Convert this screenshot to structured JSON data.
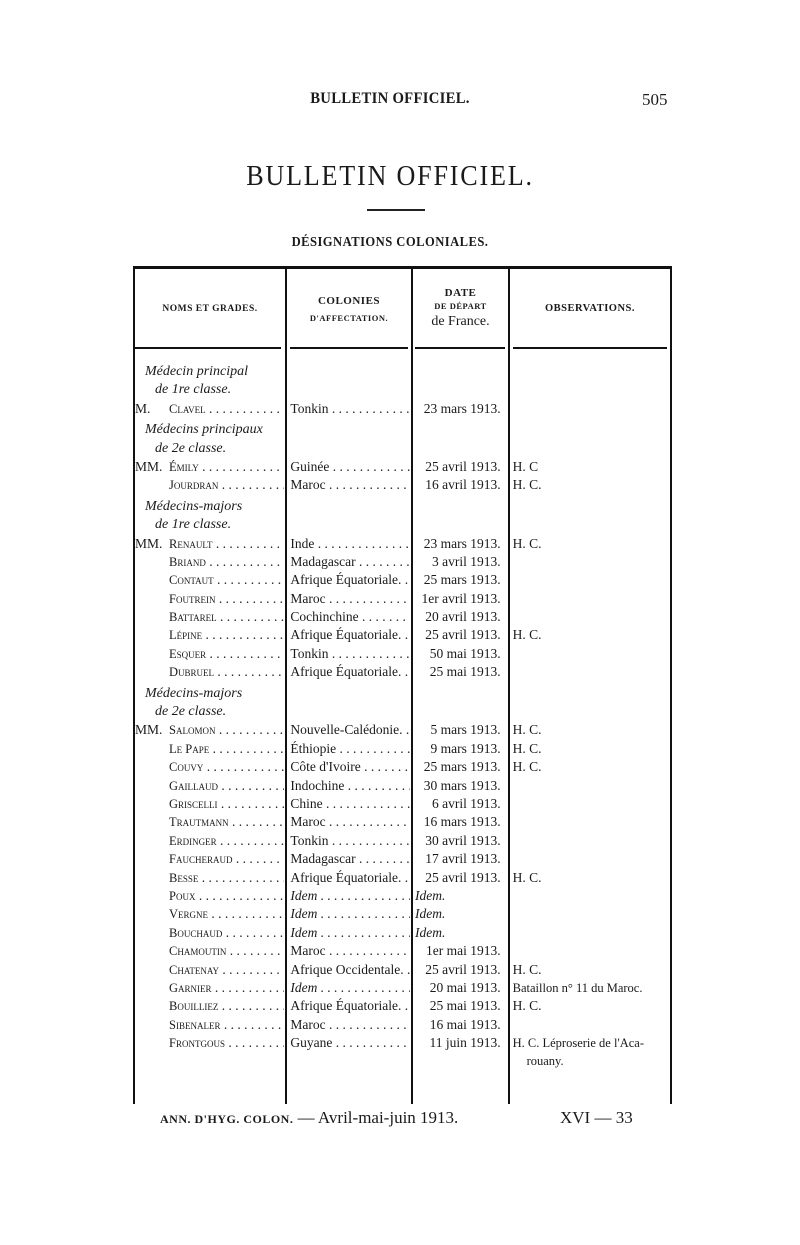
{
  "header": {
    "running_title": "BULLETIN OFFICIEL.",
    "page_number": "505"
  },
  "title": "BULLETIN OFFICIEL.",
  "subtitle": "DÉSIGNATIONS COLONIALES.",
  "table": {
    "columns": {
      "names": "NOMS ET GRADES.",
      "colonies_line1": "COLONIES",
      "colonies_line2": "D'AFFECTATION.",
      "date_line1": "DATE",
      "date_line2": "DE DÉPART",
      "date_line3": "de France.",
      "observations": "OBSERVATIONS."
    },
    "rows": [
      {
        "type": "section",
        "lines": [
          "Médecin principal",
          "de 1re classe."
        ]
      },
      {
        "type": "entry",
        "prefix": "M.",
        "name": "Clavel",
        "colony": "Tonkin",
        "date": "23 mars 1913.",
        "obs": ""
      },
      {
        "type": "section",
        "lines": [
          "Médecins principaux",
          "de 2e classe."
        ]
      },
      {
        "type": "entry",
        "prefix": "MM.",
        "name": "Émily",
        "colony": "Guinée",
        "date": "25 avril 1913.",
        "obs": "H. C"
      },
      {
        "type": "entry",
        "prefix": "",
        "name": "Jourdran",
        "colony": "Maroc",
        "date": "16 avril 1913.",
        "obs": "H. C."
      },
      {
        "type": "section",
        "lines": [
          "Médecins-majors",
          "de 1re classe."
        ]
      },
      {
        "type": "entry",
        "prefix": "MM.",
        "name": "Renault",
        "colony": "Inde",
        "date": "23 mars 1913.",
        "obs": "H. C."
      },
      {
        "type": "entry",
        "prefix": "",
        "name": "Briand",
        "colony": "Madagascar",
        "date": "3 avril 1913.",
        "obs": ""
      },
      {
        "type": "entry",
        "prefix": "",
        "name": "Contaut",
        "colony": "Afrique Équatoriale.",
        "date": "25 mars 1913.",
        "obs": ""
      },
      {
        "type": "entry",
        "prefix": "",
        "name": "Foutrein",
        "colony": "Maroc",
        "date": "1er avril 1913.",
        "obs": ""
      },
      {
        "type": "entry",
        "prefix": "",
        "name": "Battarel",
        "colony": "Cochinchine",
        "date": "20 avril 1913.",
        "obs": ""
      },
      {
        "type": "entry",
        "prefix": "",
        "name": "Lépine",
        "colony": "Afrique Équatoriale.",
        "date": "25 avril 1913.",
        "obs": "H. C."
      },
      {
        "type": "entry",
        "prefix": "",
        "name": "Esquer",
        "colony": "Tonkin",
        "date": "50 mai 1913.",
        "obs": ""
      },
      {
        "type": "entry",
        "prefix": "",
        "name": "Dubruel",
        "colony": "Afrique Équatoriale.",
        "date": "25 mai 1913.",
        "obs": ""
      },
      {
        "type": "section",
        "lines": [
          "Médecins-majors",
          "de 2e classe."
        ]
      },
      {
        "type": "entry",
        "prefix": "MM.",
        "name": "Salomon",
        "colony": "Nouvelle-Calédonie.",
        "date": "5 mars 1913.",
        "obs": "H. C."
      },
      {
        "type": "entry",
        "prefix": "",
        "name": "Le Pape",
        "colony": "Éthiopie",
        "date": "9 mars 1913.",
        "obs": "H. C."
      },
      {
        "type": "entry",
        "prefix": "",
        "name": "Couvy",
        "colony": "Côte d'Ivoire",
        "date": "25 mars 1913.",
        "obs": "H. C."
      },
      {
        "type": "entry",
        "prefix": "",
        "name": "Gaillaud",
        "colony": "Indochine",
        "date": "30 mars 1913.",
        "obs": ""
      },
      {
        "type": "entry",
        "prefix": "",
        "name": "Griscelli",
        "colony": "Chine",
        "date": "6 avril 1913.",
        "obs": ""
      },
      {
        "type": "entry",
        "prefix": "",
        "name": "Trautmann",
        "colony": "Maroc",
        "date": "16 mars 1913.",
        "obs": ""
      },
      {
        "type": "entry",
        "prefix": "",
        "name": "Erdinger",
        "colony": "Tonkin",
        "date": "30 avril 1913.",
        "obs": ""
      },
      {
        "type": "entry",
        "prefix": "",
        "name": "Faucheraud",
        "colony": "Madagascar",
        "date": "17 avril 1913.",
        "obs": ""
      },
      {
        "type": "entry",
        "prefix": "",
        "name": "Besse",
        "colony": "Afrique Équatoriale.",
        "date": "25 avril 1913.",
        "obs": "H. C."
      },
      {
        "type": "entry",
        "prefix": "",
        "name": "Poux",
        "colony": "Idem",
        "date": "Idem.",
        "obs": "",
        "idem": true
      },
      {
        "type": "entry",
        "prefix": "",
        "name": "Vergne",
        "colony": "Idem",
        "date": "Idem.",
        "obs": "",
        "idem": true
      },
      {
        "type": "entry",
        "prefix": "",
        "name": "Bouchaud",
        "colony": "Idem",
        "date": "Idem.",
        "obs": "",
        "idem": true
      },
      {
        "type": "entry",
        "prefix": "",
        "name": "Chamoutin",
        "colony": "Maroc",
        "date": "1er mai 1913.",
        "obs": ""
      },
      {
        "type": "entry",
        "prefix": "",
        "name": "Chatenay",
        "colony": "Afrique Occidentale.",
        "date": "25 avril 1913.",
        "obs": "H. C."
      },
      {
        "type": "entry",
        "prefix": "",
        "name": "Garnier",
        "colony": "Idem",
        "date": "20 mai 1913.",
        "obs": "Bataillon n° 11 du Maroc.",
        "idem_colony": true
      },
      {
        "type": "entry",
        "prefix": "",
        "name": "Bouilliez",
        "colony": "Afrique Équatoriale.",
        "date": "25 mai 1913.",
        "obs": "H. C."
      },
      {
        "type": "entry",
        "prefix": "",
        "name": "Sibenaler",
        "colony": "Maroc",
        "date": "16 mai 1913.",
        "obs": ""
      },
      {
        "type": "entry",
        "prefix": "",
        "name": "Frontgous",
        "colony": "Guyane",
        "date": "11 juin 1913.",
        "obs": "H. C. Léproserie de l'Aca-",
        "obs_cont": "rouany."
      }
    ]
  },
  "footer": {
    "journal": "ANN. D'HYG. COLON.",
    "issue": "— Avril-mai-juin 1913.",
    "signature": "XVI — 33"
  }
}
